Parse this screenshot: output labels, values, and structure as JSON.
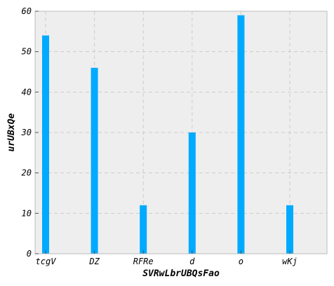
{
  "chart_data": {
    "type": "bar",
    "title": "",
    "xlabel": "SVRwLbrUBQsFao",
    "ylabel": "urUBxQe",
    "categories": [
      "tcgV",
      "DZ",
      "RFRe",
      "d",
      "o",
      "wKj"
    ],
    "values": [
      54,
      46,
      12,
      30,
      59,
      12
    ],
    "ylim": [
      0,
      60
    ],
    "yticks": [
      0,
      10,
      20,
      30,
      40,
      50,
      60
    ],
    "grid": true,
    "legend": "none",
    "bar_color": "#00aaff",
    "plot_background": "#eeeeee"
  }
}
